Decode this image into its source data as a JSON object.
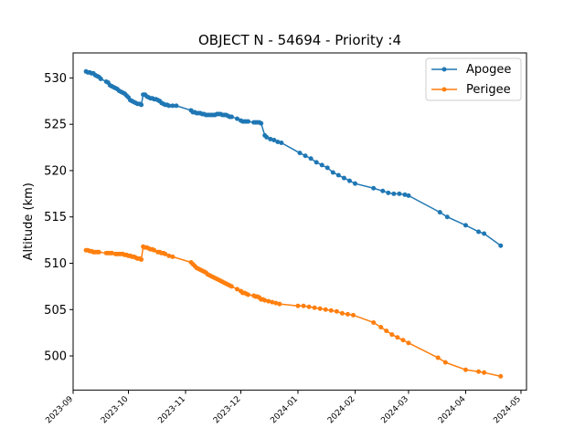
{
  "chart_data": {
    "type": "line",
    "title": "OBJECT N - 54694 - Priority :4",
    "xlabel": "",
    "ylabel": "Altitude (km)",
    "xlim": [
      "2023-09-01",
      "2024-05-04"
    ],
    "ylim": [
      496.3,
      532.7
    ],
    "yticks": [
      500,
      505,
      510,
      515,
      520,
      525,
      530
    ],
    "xticks": [
      "2023-09",
      "2023-10",
      "2023-11",
      "2023-12",
      "2024-01",
      "2024-02",
      "2024-03",
      "2024-04",
      "2024-05"
    ],
    "grid": false,
    "legend_position": "top-right",
    "colors": {
      "Apogee": "#1f77b4",
      "Perigee": "#ff7f0e"
    },
    "series": [
      {
        "name": "Apogee",
        "x": [
          "2023-09-08",
          "2023-09-09",
          "2023-09-10",
          "2023-09-11",
          "2023-09-12",
          "2023-09-13",
          "2023-09-14",
          "2023-09-15",
          "2023-09-16",
          "2023-09-19",
          "2023-09-20",
          "2023-09-21",
          "2023-09-22",
          "2023-09-23",
          "2023-09-24",
          "2023-09-25",
          "2023-09-26",
          "2023-09-27",
          "2023-09-28",
          "2023-09-29",
          "2023-09-30",
          "2023-10-01",
          "2023-10-02",
          "2023-10-03",
          "2023-10-04",
          "2023-10-05",
          "2023-10-06",
          "2023-10-07",
          "2023-10-08",
          "2023-10-09",
          "2023-10-10",
          "2023-10-11",
          "2023-10-12",
          "2023-10-13",
          "2023-10-14",
          "2023-10-15",
          "2023-10-16",
          "2023-10-17",
          "2023-10-18",
          "2023-10-19",
          "2023-10-20",
          "2023-10-21",
          "2023-10-22",
          "2023-10-23",
          "2023-10-25",
          "2023-10-27",
          "2023-11-04",
          "2023-11-05",
          "2023-11-06",
          "2023-11-07",
          "2023-11-08",
          "2023-11-09",
          "2023-11-10",
          "2023-11-11",
          "2023-11-12",
          "2023-11-13",
          "2023-11-14",
          "2023-11-15",
          "2023-11-16",
          "2023-11-17",
          "2023-11-18",
          "2023-11-19",
          "2023-11-20",
          "2023-11-21",
          "2023-11-22",
          "2023-11-23",
          "2023-11-24",
          "2023-11-25",
          "2023-11-26",
          "2023-11-29",
          "2023-12-01",
          "2023-12-02",
          "2023-12-03",
          "2023-12-04",
          "2023-12-05",
          "2023-12-08",
          "2023-12-09",
          "2023-12-10",
          "2023-12-11",
          "2023-12-12",
          "2023-12-14",
          "2023-12-15",
          "2023-12-17",
          "2023-12-19",
          "2023-12-21",
          "2023-12-23",
          "2024-01-02",
          "2024-01-05",
          "2024-01-08",
          "2024-01-11",
          "2024-01-14",
          "2024-01-17",
          "2024-01-20",
          "2024-01-23",
          "2024-01-26",
          "2024-01-29",
          "2024-02-01",
          "2024-02-11",
          "2024-02-16",
          "2024-02-19",
          "2024-02-22",
          "2024-02-25",
          "2024-02-28",
          "2024-03-01",
          "2024-03-18",
          "2024-03-22",
          "2024-04-01",
          "2024-04-08",
          "2024-04-11",
          "2024-04-20"
        ],
        "y": [
          530.7,
          530.6,
          530.6,
          530.5,
          530.5,
          530.3,
          530.2,
          530.1,
          529.9,
          529.6,
          529.5,
          529.2,
          529.1,
          529.0,
          528.9,
          528.8,
          528.6,
          528.5,
          528.4,
          528.3,
          528.1,
          527.9,
          527.6,
          527.5,
          527.4,
          527.3,
          527.2,
          527.2,
          527.1,
          528.2,
          528.2,
          528.0,
          527.9,
          527.8,
          527.8,
          527.7,
          527.7,
          527.6,
          527.5,
          527.3,
          527.2,
          527.1,
          527.1,
          527.0,
          527.0,
          527.0,
          526.5,
          526.3,
          526.3,
          526.2,
          526.2,
          526.2,
          526.1,
          526.1,
          526.0,
          526.0,
          526.0,
          526.0,
          526.0,
          526.0,
          526.1,
          526.1,
          526.1,
          526.0,
          526.0,
          526.0,
          525.9,
          525.8,
          525.8,
          525.6,
          525.4,
          525.3,
          525.3,
          525.3,
          525.3,
          525.2,
          525.2,
          525.2,
          525.2,
          525.1,
          523.8,
          523.6,
          523.4,
          523.3,
          523.1,
          523.0,
          521.9,
          521.6,
          521.3,
          520.9,
          520.6,
          520.3,
          519.8,
          519.5,
          519.2,
          518.9,
          518.6,
          518.1,
          517.8,
          517.6,
          517.5,
          517.5,
          517.4,
          517.3,
          515.5,
          515.0,
          514.1,
          513.4,
          513.2,
          511.9
        ]
      },
      {
        "name": "Perigee",
        "x": [
          "2023-09-08",
          "2023-09-09",
          "2023-09-10",
          "2023-09-11",
          "2023-09-12",
          "2023-09-13",
          "2023-09-14",
          "2023-09-15",
          "2023-09-19",
          "2023-09-20",
          "2023-09-21",
          "2023-09-22",
          "2023-09-24",
          "2023-09-25",
          "2023-09-26",
          "2023-09-27",
          "2023-09-28",
          "2023-09-29",
          "2023-09-30",
          "2023-10-01",
          "2023-10-02",
          "2023-10-03",
          "2023-10-04",
          "2023-10-05",
          "2023-10-06",
          "2023-10-07",
          "2023-10-08",
          "2023-10-09",
          "2023-10-10",
          "2023-10-11",
          "2023-10-12",
          "2023-10-13",
          "2023-10-14",
          "2023-10-15",
          "2023-10-17",
          "2023-10-18",
          "2023-10-19",
          "2023-10-20",
          "2023-10-21",
          "2023-10-23",
          "2023-10-25",
          "2023-11-04",
          "2023-11-05",
          "2023-11-06",
          "2023-11-07",
          "2023-11-08",
          "2023-11-09",
          "2023-11-10",
          "2023-11-11",
          "2023-11-12",
          "2023-11-13",
          "2023-11-14",
          "2023-11-15",
          "2023-11-16",
          "2023-11-17",
          "2023-11-18",
          "2023-11-19",
          "2023-11-20",
          "2023-11-21",
          "2023-11-22",
          "2023-11-23",
          "2023-11-24",
          "2023-11-25",
          "2023-11-26",
          "2023-11-29",
          "2023-12-01",
          "2023-12-02",
          "2023-12-03",
          "2023-12-04",
          "2023-12-05",
          "2023-12-08",
          "2023-12-09",
          "2023-12-10",
          "2023-12-11",
          "2023-12-12",
          "2023-12-13",
          "2023-12-14",
          "2023-12-16",
          "2023-12-18",
          "2023-12-20",
          "2023-12-22",
          "2024-01-01",
          "2024-01-04",
          "2024-01-07",
          "2024-01-10",
          "2024-01-13",
          "2024-01-16",
          "2024-01-19",
          "2024-01-22",
          "2024-01-25",
          "2024-01-28",
          "2024-01-31",
          "2024-02-11",
          "2024-02-15",
          "2024-02-18",
          "2024-02-21",
          "2024-02-24",
          "2024-02-27",
          "2024-03-01",
          "2024-03-17",
          "2024-03-21",
          "2024-04-01",
          "2024-04-08",
          "2024-04-11",
          "2024-04-20"
        ],
        "y": [
          511.4,
          511.4,
          511.3,
          511.3,
          511.2,
          511.2,
          511.2,
          511.2,
          511.1,
          511.1,
          511.1,
          511.1,
          511.0,
          511.0,
          511.0,
          511.0,
          511.0,
          510.9,
          510.9,
          510.8,
          510.8,
          510.7,
          510.7,
          510.6,
          510.5,
          510.5,
          510.4,
          511.8,
          511.7,
          511.7,
          511.6,
          511.5,
          511.5,
          511.4,
          511.2,
          511.2,
          511.1,
          511.1,
          511.0,
          510.8,
          510.7,
          510.1,
          509.9,
          509.7,
          509.5,
          509.4,
          509.3,
          509.2,
          509.1,
          509.0,
          508.8,
          508.7,
          508.6,
          508.5,
          508.4,
          508.3,
          508.2,
          508.1,
          508.0,
          507.9,
          507.8,
          507.7,
          507.6,
          507.5,
          507.2,
          507.0,
          506.8,
          506.8,
          506.7,
          506.6,
          506.5,
          506.4,
          506.4,
          506.3,
          506.1,
          506.1,
          506.0,
          505.9,
          505.8,
          505.7,
          505.6,
          505.4,
          505.4,
          505.3,
          505.2,
          505.1,
          505.0,
          504.9,
          504.8,
          504.6,
          504.5,
          504.4,
          503.6,
          503.1,
          502.7,
          502.3,
          502.0,
          501.7,
          501.4,
          499.8,
          499.3,
          498.5,
          498.3,
          498.2,
          497.8
        ]
      }
    ]
  }
}
